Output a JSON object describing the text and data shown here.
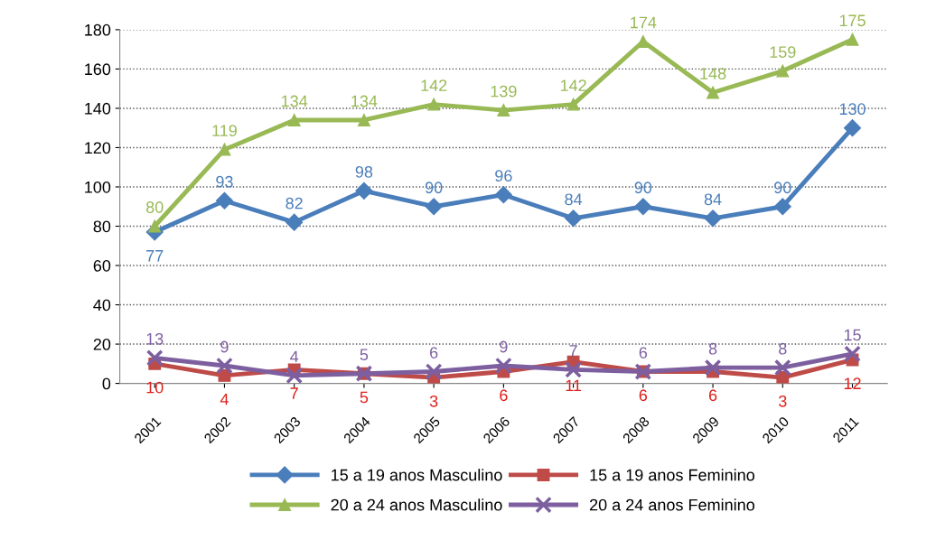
{
  "chart_data": {
    "type": "line",
    "categories": [
      "2001",
      "2002",
      "2003",
      "2004",
      "2005",
      "2006",
      "2007",
      "2008",
      "2009",
      "2010",
      "2011"
    ],
    "series": [
      {
        "name": "15 a 19 anos Masculino",
        "color": "#4a7ebb",
        "marker": "diamond",
        "values": [
          77,
          93,
          82,
          98,
          90,
          96,
          84,
          90,
          84,
          90,
          130
        ]
      },
      {
        "name": "15 a 19 anos Feminino",
        "color": "#be4b48",
        "marker": "square",
        "values": [
          10,
          4,
          7,
          5,
          3,
          6,
          11,
          6,
          6,
          3,
          12
        ]
      },
      {
        "name": "20 a 24 anos Masculino",
        "color": "#98b954",
        "marker": "triangle",
        "values": [
          80,
          119,
          134,
          134,
          142,
          139,
          142,
          174,
          148,
          159,
          175
        ]
      },
      {
        "name": "20 a 24 anos Feminino",
        "color": "#7d5fa0",
        "marker": "cross",
        "values": [
          13,
          9,
          4,
          5,
          6,
          9,
          7,
          6,
          8,
          8,
          15
        ]
      }
    ],
    "ylim": [
      0,
      180
    ],
    "yticks": [
      0,
      20,
      40,
      60,
      80,
      100,
      120,
      140,
      160,
      180
    ],
    "grid": "y",
    "legend": "bottom",
    "data_labels": true,
    "line_style": "solid"
  }
}
